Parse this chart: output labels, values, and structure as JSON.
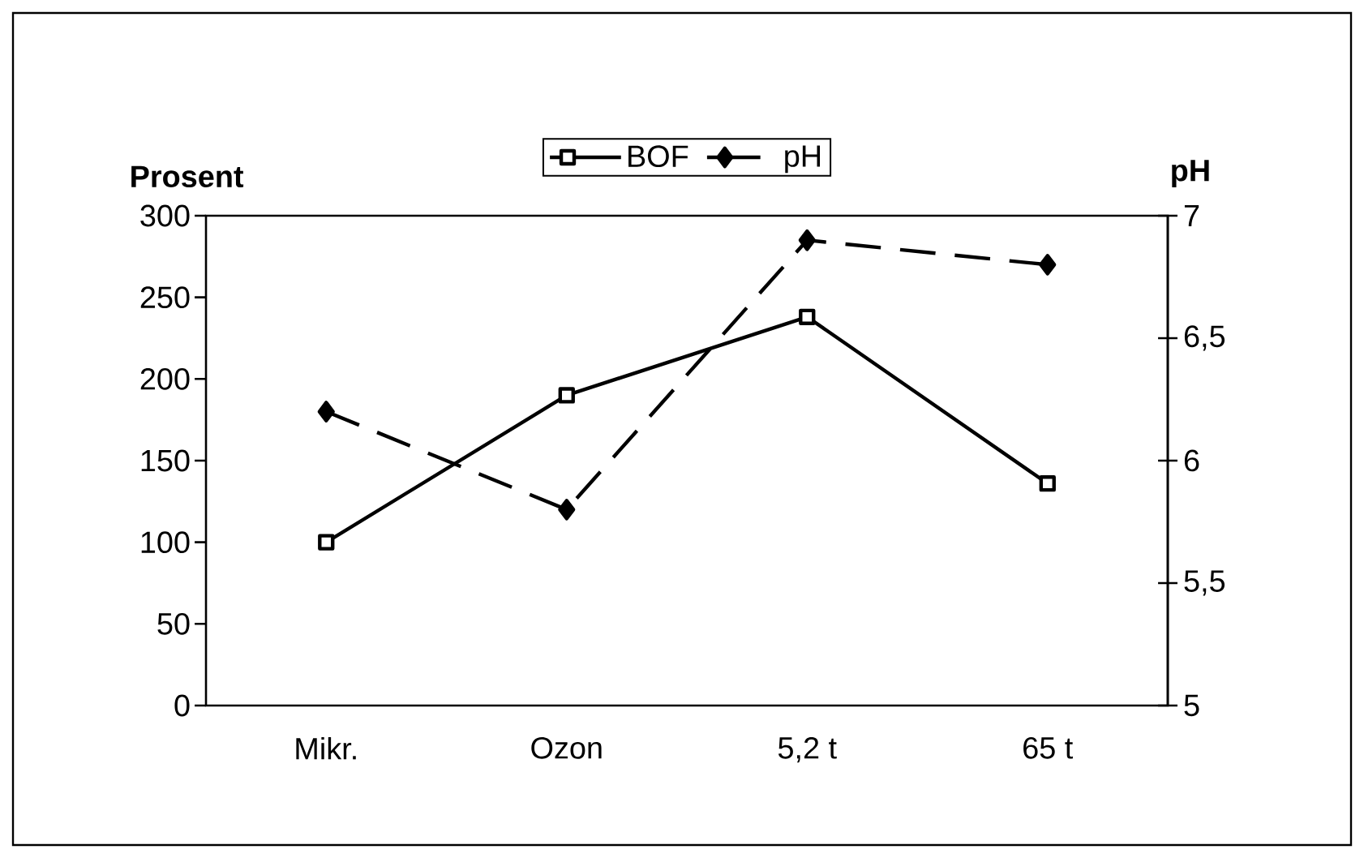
{
  "chart_data": {
    "type": "line",
    "ylabel": "Prosent",
    "y2label": "pH",
    "categories": [
      "Mikr.",
      "Ozon",
      "5,2 t",
      "65 t"
    ],
    "series": [
      {
        "name": "BOF",
        "color": "#000000",
        "values": [
          100,
          190,
          238,
          136
        ],
        "marker": "square",
        "line_style": "solid"
      },
      {
        "name": "pH",
        "color": "#000000",
        "values": [
          6.2,
          5.8,
          6.9,
          6.8
        ],
        "axis": "y2",
        "marker": "diamond",
        "line_style": "dashed"
      }
    ],
    "ylim": [
      0,
      300
    ],
    "yticks": [
      0,
      50,
      100,
      150,
      200,
      250,
      300
    ],
    "y2lim": [
      5,
      7
    ],
    "y2ticks": [
      {
        "value": 5,
        "label": "5"
      },
      {
        "value": 5.5,
        "label": "5,5"
      },
      {
        "value": 6,
        "label": "6"
      },
      {
        "value": 6.5,
        "label": "6,5"
      },
      {
        "value": 7,
        "label": "7"
      }
    ],
    "legend": "top",
    "grid": false
  }
}
